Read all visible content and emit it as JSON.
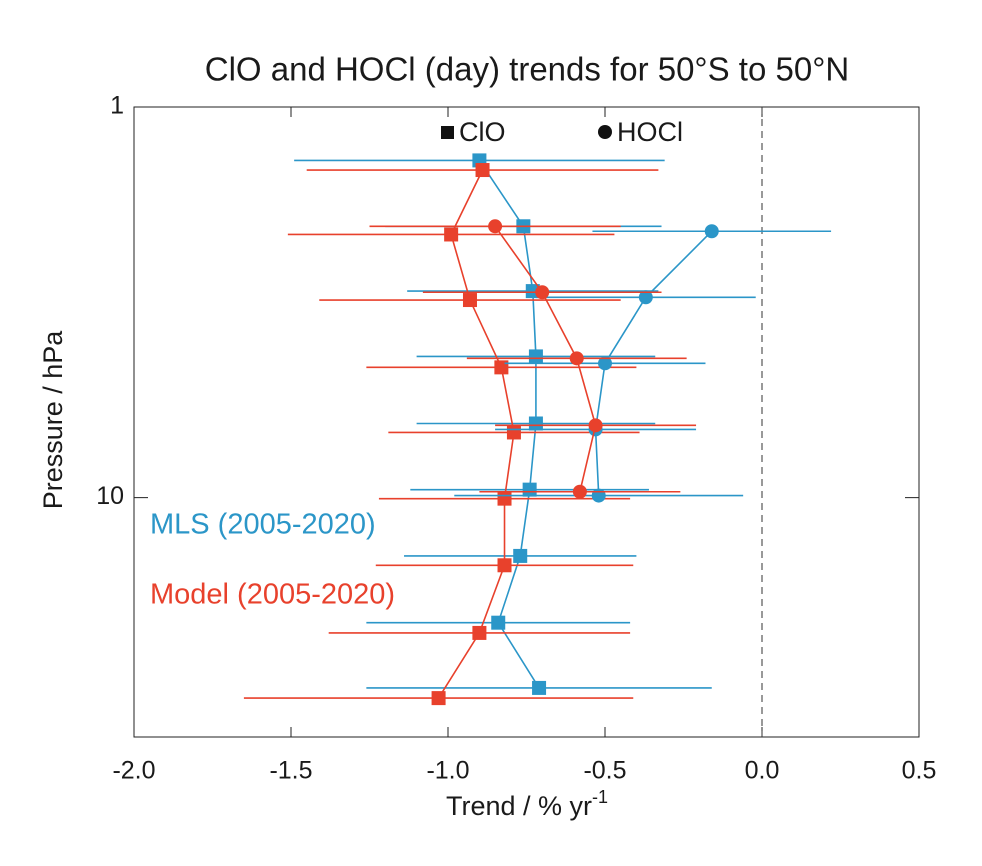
{
  "chart_data": {
    "type": "scatter",
    "title": "ClO and HOCl (day) trends for 50°S to 50°N",
    "xlabel": "Trend / % yr",
    "xlabel_sup": "-1",
    "ylabel": "Pressure / hPa",
    "xlim": [
      -2.0,
      0.5
    ],
    "xticks": [
      {
        "value": -2.0,
        "label": "-2.0"
      },
      {
        "value": -1.5,
        "label": "-1.5"
      },
      {
        "value": -1.0,
        "label": "-1.0"
      },
      {
        "value": -0.5,
        "label": "-0.5"
      },
      {
        "value": 0.0,
        "label": "0.0"
      },
      {
        "value": 0.5,
        "label": "0.5"
      }
    ],
    "ylim": [
      1,
      41
    ],
    "yticks": [
      1,
      10
    ],
    "y_log": true,
    "y_inverted": true,
    "vline": 0,
    "series": [
      {
        "species": "ClO",
        "dataset": "MLS (2005-2020)",
        "marker": "square",
        "color": "#2b96c8",
        "y": [
          1.37,
          2.02,
          2.96,
          4.35,
          6.46,
          9.54,
          14.1,
          20.9,
          30.7
        ],
        "x": [
          -0.9,
          -0.76,
          -0.73,
          -0.72,
          -0.72,
          -0.74,
          -0.77,
          -0.84,
          -0.71
        ],
        "xerr": [
          0.59,
          0.44,
          0.4,
          0.38,
          0.38,
          0.38,
          0.37,
          0.42,
          0.55
        ]
      },
      {
        "species": "ClO",
        "dataset": "Model (2005-2020)",
        "marker": "square",
        "color": "#e8412c",
        "y": [
          1.45,
          2.12,
          3.12,
          4.64,
          6.81,
          10.06,
          14.9,
          22.2,
          32.6
        ],
        "x": [
          -0.89,
          -0.99,
          -0.93,
          -0.83,
          -0.79,
          -0.82,
          -0.82,
          -0.9,
          -1.03
        ],
        "xerr": [
          0.56,
          0.52,
          0.48,
          0.43,
          0.4,
          0.4,
          0.41,
          0.48,
          0.62
        ]
      },
      {
        "species": "HOCl",
        "dataset": "MLS (2005-2020)",
        "marker": "circle",
        "color": "#2b96c8",
        "y": [
          2.08,
          3.07,
          4.53,
          6.69,
          9.88
        ],
        "x": [
          -0.16,
          -0.37,
          -0.5,
          -0.53,
          -0.52
        ],
        "xerr": [
          0.38,
          0.35,
          0.32,
          0.32,
          0.46
        ]
      },
      {
        "species": "HOCl",
        "dataset": "Model (2005-2020)",
        "marker": "circle",
        "color": "#e8412c",
        "y": [
          2.02,
          2.98,
          4.4,
          6.53,
          9.66
        ],
        "x": [
          -0.85,
          -0.7,
          -0.59,
          -0.53,
          -0.58
        ],
        "xerr": [
          0.4,
          0.38,
          0.35,
          0.32,
          0.32
        ]
      }
    ]
  }
}
